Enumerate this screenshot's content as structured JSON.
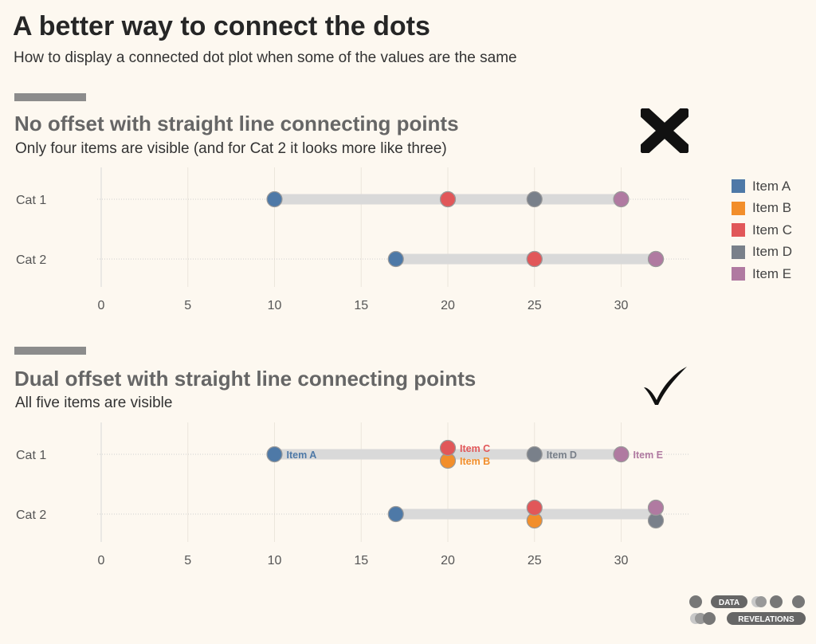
{
  "page": {
    "title": "A better way to connect the dots",
    "subtitle": "How to display a connected dot plot when some of the values are the same"
  },
  "legend": {
    "items": [
      {
        "label": "Item A",
        "color": "#4e79a7"
      },
      {
        "label": "Item B",
        "color": "#f28e2b"
      },
      {
        "label": "Item C",
        "color": "#e15759"
      },
      {
        "label": "Item D",
        "color": "#79808a"
      },
      {
        "label": "Item E",
        "color": "#b07aa1"
      }
    ]
  },
  "logo": {
    "line1": "DATA",
    "line2": "REVELATIONS"
  },
  "chart_data": [
    {
      "type": "scatter",
      "title": "No offset with straight line connecting points",
      "subtitle": "Only four items are visible (and for Cat 2 it looks more like three)",
      "verdict_icon": "cross-icon",
      "categories": [
        "Cat 1",
        "Cat 2"
      ],
      "xlim": [
        0,
        34
      ],
      "xticks": [
        0,
        5,
        10,
        15,
        20,
        25,
        30
      ],
      "offset": false,
      "show_point_labels": false,
      "series": [
        {
          "name": "Item A",
          "values": [
            10,
            17
          ]
        },
        {
          "name": "Item B",
          "values": [
            20,
            25
          ]
        },
        {
          "name": "Item C",
          "values": [
            20,
            25
          ]
        },
        {
          "name": "Item D",
          "values": [
            25,
            32
          ]
        },
        {
          "name": "Item E",
          "values": [
            30,
            32
          ]
        }
      ]
    },
    {
      "type": "scatter",
      "title": "Dual offset with straight line connecting points",
      "subtitle": "All five items are visible",
      "verdict_icon": "check-icon",
      "categories": [
        "Cat 1",
        "Cat 2"
      ],
      "xlim": [
        0,
        34
      ],
      "xticks": [
        0,
        5,
        10,
        15,
        20,
        25,
        30
      ],
      "offset": true,
      "show_point_labels": true,
      "series": [
        {
          "name": "Item A",
          "values": [
            10,
            17
          ]
        },
        {
          "name": "Item B",
          "values": [
            20,
            25
          ]
        },
        {
          "name": "Item C",
          "values": [
            20,
            25
          ]
        },
        {
          "name": "Item D",
          "values": [
            25,
            32
          ]
        },
        {
          "name": "Item E",
          "values": [
            30,
            32
          ]
        }
      ]
    }
  ]
}
